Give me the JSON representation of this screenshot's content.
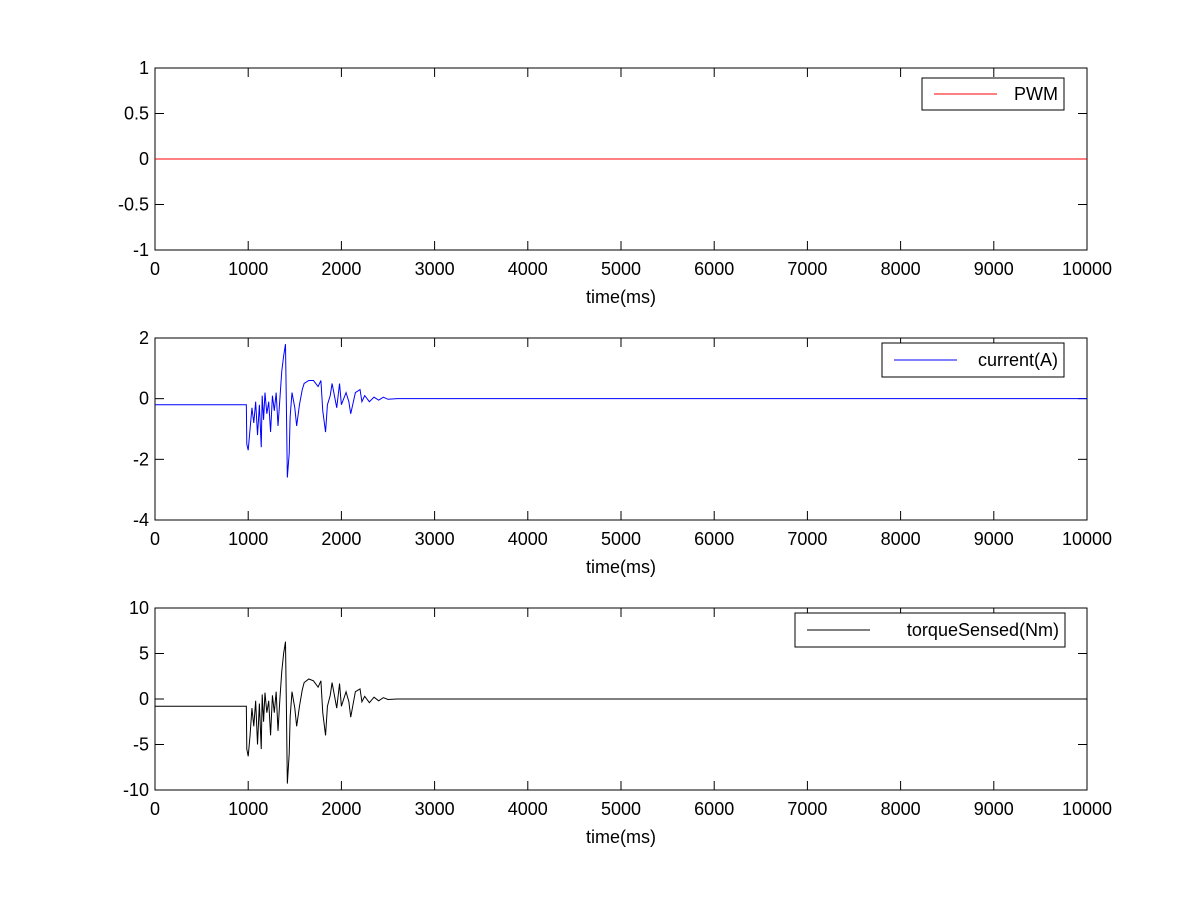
{
  "figure": {
    "background": "#ffffff"
  },
  "chart_data": [
    {
      "type": "line",
      "title": "",
      "xlabel": "time(ms)",
      "ylabel": "",
      "xlim": [
        0,
        10000
      ],
      "ylim": [
        -1,
        1
      ],
      "xticks": [
        0,
        1000,
        2000,
        3000,
        4000,
        5000,
        6000,
        7000,
        8000,
        9000,
        10000
      ],
      "xtick_labels": [
        "0",
        "1000",
        "2000",
        "3000",
        "4000",
        "5000",
        "6000",
        "7000",
        "8000",
        "9000",
        "10000"
      ],
      "yticks": [
        -1,
        -0.5,
        0,
        0.5,
        1
      ],
      "ytick_labels": [
        "-1",
        "-0.5",
        "0",
        "0.5",
        "1"
      ],
      "grid": false,
      "legend_position": "top-right",
      "series": [
        {
          "name": "PWM",
          "color": "#ff0000",
          "x": [
            0,
            10000
          ],
          "y": [
            0,
            0
          ]
        }
      ]
    },
    {
      "type": "line",
      "title": "",
      "xlabel": "time(ms)",
      "ylabel": "",
      "xlim": [
        0,
        10000
      ],
      "ylim": [
        -4,
        2
      ],
      "xticks": [
        0,
        1000,
        2000,
        3000,
        4000,
        5000,
        6000,
        7000,
        8000,
        9000,
        10000
      ],
      "xtick_labels": [
        "0",
        "1000",
        "2000",
        "3000",
        "4000",
        "5000",
        "6000",
        "7000",
        "8000",
        "9000",
        "10000"
      ],
      "yticks": [
        -4,
        -2,
        0,
        2
      ],
      "ytick_labels": [
        "-4",
        "-2",
        "0",
        "2"
      ],
      "grid": false,
      "legend_position": "top-right",
      "series": [
        {
          "name": "current(A)",
          "color": "#0000ff",
          "x": [
            0,
            980,
            985,
            1000,
            1020,
            1040,
            1060,
            1080,
            1100,
            1120,
            1140,
            1150,
            1165,
            1180,
            1200,
            1220,
            1240,
            1260,
            1280,
            1300,
            1320,
            1340,
            1360,
            1380,
            1400,
            1410,
            1420,
            1440,
            1450,
            1470,
            1500,
            1520,
            1550,
            1580,
            1600,
            1650,
            1700,
            1750,
            1780,
            1800,
            1830,
            1850,
            1880,
            1900,
            1950,
            1980,
            2000,
            2050,
            2080,
            2100,
            2150,
            2200,
            2220,
            2250,
            2300,
            2350,
            2400,
            2450,
            2500,
            2600,
            2700,
            10000
          ],
          "y": [
            -0.2,
            -0.2,
            -1.5,
            -1.7,
            -1.0,
            -0.3,
            -0.8,
            -0.1,
            -1.2,
            -0.2,
            -1.6,
            0.1,
            -0.7,
            0.2,
            -0.5,
            -0.1,
            -1.1,
            0.1,
            -0.4,
            0.2,
            -0.9,
            0.0,
            0.9,
            1.4,
            1.8,
            -0.3,
            -2.6,
            -1.8,
            -0.6,
            0.2,
            -0.3,
            -0.9,
            -0.2,
            0.3,
            0.5,
            0.6,
            0.6,
            0.4,
            0.6,
            -0.4,
            -1.1,
            -0.2,
            0.1,
            0.5,
            -0.3,
            0.5,
            -0.2,
            0.2,
            -0.1,
            -0.5,
            0.2,
            0.3,
            -0.1,
            0.1,
            -0.1,
            0.05,
            -0.05,
            0.05,
            -0.02,
            0.0,
            0.0,
            0.0
          ]
        }
      ]
    },
    {
      "type": "line",
      "title": "",
      "xlabel": "time(ms)",
      "ylabel": "",
      "xlim": [
        0,
        10000
      ],
      "ylim": [
        -10,
        10
      ],
      "xticks": [
        0,
        1000,
        2000,
        3000,
        4000,
        5000,
        6000,
        7000,
        8000,
        9000,
        10000
      ],
      "xtick_labels": [
        "0",
        "1000",
        "2000",
        "3000",
        "4000",
        "5000",
        "6000",
        "7000",
        "8000",
        "9000",
        "10000"
      ],
      "yticks": [
        -10,
        -5,
        0,
        5,
        10
      ],
      "ytick_labels": [
        "-10",
        "-5",
        "0",
        "5",
        "10"
      ],
      "grid": false,
      "legend_position": "top-right",
      "series": [
        {
          "name": "torqueSensed(Nm)",
          "color": "#000000",
          "x": [
            0,
            980,
            985,
            1000,
            1020,
            1040,
            1060,
            1080,
            1100,
            1120,
            1140,
            1150,
            1165,
            1180,
            1200,
            1220,
            1240,
            1260,
            1280,
            1300,
            1320,
            1340,
            1360,
            1380,
            1400,
            1410,
            1420,
            1440,
            1450,
            1470,
            1500,
            1520,
            1550,
            1580,
            1600,
            1650,
            1700,
            1750,
            1780,
            1800,
            1830,
            1850,
            1880,
            1900,
            1950,
            1980,
            2000,
            2050,
            2080,
            2100,
            2150,
            2200,
            2220,
            2250,
            2300,
            2350,
            2400,
            2450,
            2500,
            2600,
            2700,
            10000
          ],
          "y": [
            -0.8,
            -0.8,
            -5.5,
            -6.3,
            -4.0,
            -1.0,
            -3.0,
            -0.2,
            -5.0,
            -0.5,
            -5.5,
            0.5,
            -2.5,
            0.7,
            -1.5,
            -0.2,
            -4.0,
            0.4,
            -1.5,
            0.8,
            -3.5,
            0.0,
            3.0,
            5.0,
            6.3,
            -1.0,
            -9.3,
            -6.0,
            -2.0,
            0.8,
            -1.0,
            -3.0,
            -0.8,
            1.0,
            1.8,
            2.2,
            2.0,
            1.3,
            2.0,
            -1.5,
            -4.0,
            -0.8,
            0.4,
            1.8,
            -1.0,
            1.7,
            -0.8,
            0.8,
            -0.3,
            -2.0,
            0.8,
            1.1,
            -0.3,
            0.3,
            -0.4,
            0.2,
            -0.2,
            0.15,
            -0.05,
            0.0,
            0.0,
            0.0
          ]
        }
      ]
    }
  ]
}
